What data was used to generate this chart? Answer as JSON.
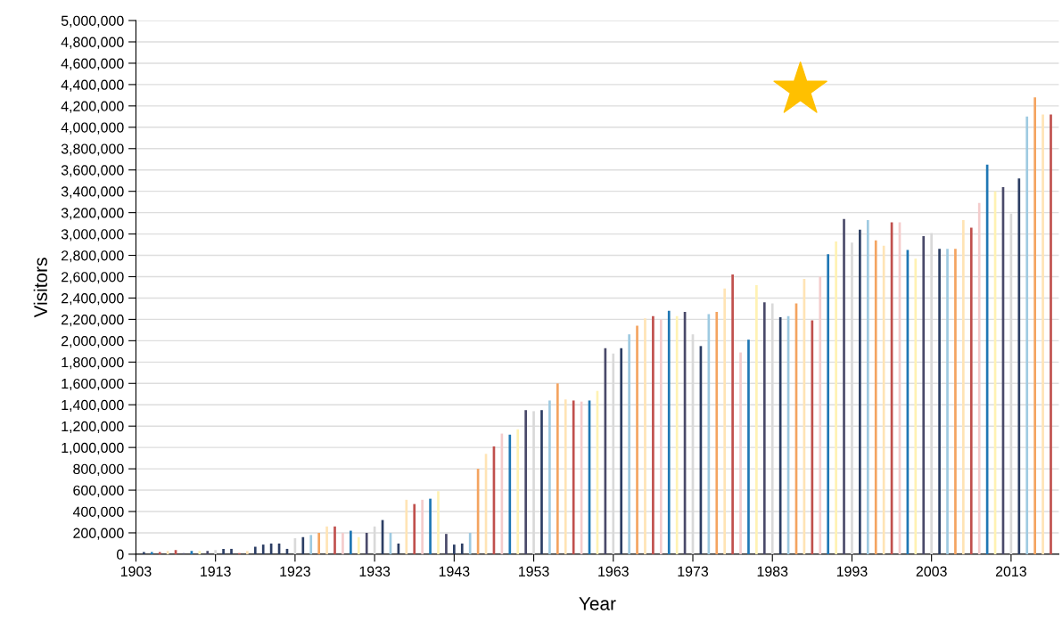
{
  "chart_data": {
    "type": "bar",
    "xlabel": "Year",
    "ylabel": "Visitors",
    "x": [
      1904,
      1905,
      1906,
      1907,
      1908,
      1909,
      1910,
      1911,
      1912,
      1913,
      1914,
      1915,
      1916,
      1917,
      1918,
      1919,
      1920,
      1921,
      1922,
      1923,
      1924,
      1925,
      1926,
      1927,
      1928,
      1929,
      1930,
      1931,
      1932,
      1933,
      1934,
      1935,
      1936,
      1937,
      1938,
      1939,
      1940,
      1941,
      1942,
      1943,
      1944,
      1945,
      1946,
      1947,
      1948,
      1949,
      1950,
      1951,
      1952,
      1953,
      1954,
      1955,
      1956,
      1957,
      1958,
      1959,
      1960,
      1961,
      1962,
      1963,
      1964,
      1965,
      1966,
      1967,
      1968,
      1969,
      1970,
      1971,
      1972,
      1973,
      1974,
      1975,
      1976,
      1977,
      1978,
      1979,
      1980,
      1981,
      1982,
      1983,
      1984,
      1985,
      1986,
      1987,
      1988,
      1989,
      1990,
      1991,
      1992,
      1993,
      1994,
      1995,
      1996,
      1997,
      1998,
      1999,
      2000,
      2001,
      2002,
      2003,
      2004,
      2005,
      2006,
      2007,
      2008,
      2009,
      2010,
      2011,
      2012,
      2013,
      2014,
      2015,
      2016,
      2017,
      2018
    ],
    "values": [
      20000,
      20000,
      20000,
      30000,
      40000,
      10000,
      30000,
      30000,
      30000,
      40000,
      50000,
      50000,
      10000,
      30000,
      70000,
      90000,
      100000,
      100000,
      50000,
      150000,
      160000,
      180000,
      200000,
      260000,
      260000,
      200000,
      220000,
      160000,
      200000,
      260000,
      320000,
      200000,
      100000,
      510000,
      470000,
      510000,
      520000,
      590000,
      190000,
      90000,
      100000,
      200000,
      800000,
      940000,
      1010000,
      1130000,
      1120000,
      1170000,
      1350000,
      1340000,
      1350000,
      1440000,
      1600000,
      1450000,
      1440000,
      1430000,
      1440000,
      1530000,
      1930000,
      1880000,
      1930000,
      2060000,
      2140000,
      2210000,
      2230000,
      2200000,
      2280000,
      2230000,
      2270000,
      2060000,
      1950000,
      2250000,
      2270000,
      2490000,
      2620000,
      1890000,
      2010000,
      2520000,
      2360000,
      2350000,
      2220000,
      2230000,
      2350000,
      2580000,
      2190000,
      2600000,
      2810000,
      2930000,
      3140000,
      2920000,
      3040000,
      3130000,
      2940000,
      2890000,
      3110000,
      3110000,
      2850000,
      2770000,
      2980000,
      3010000,
      2860000,
      2860000,
      2860000,
      3130000,
      3060000,
      3290000,
      3650000,
      3400000,
      3440000,
      3190000,
      3520000,
      4100000,
      4280000,
      4120000,
      4120000
    ],
    "colors": [
      "#2c3e64",
      "#1f77b4",
      "#c0504d",
      "#ffe4b5",
      "#c0504d",
      "#4a4a6a",
      "#1f77b4",
      "#fff2b3",
      "#4a4a6a",
      "#d9d9d9",
      "#2c3e64",
      "#2c3e64",
      "#c0504d",
      "#ffe4b5",
      "#2c3e64",
      "#2c3e64",
      "#2c3e64",
      "#2c3e64",
      "#2c3e64",
      "#d9d9d9",
      "#2c3e64",
      "#9ecae1",
      "#f4a460",
      "#ffe4b5",
      "#c0504d",
      "#f4cccc",
      "#1f77b4",
      "#fff2b3",
      "#4a4a6a",
      "#d9d9d9",
      "#2c3e64",
      "#9ecae1",
      "#2c3e64",
      "#ffe4b5",
      "#c0504d",
      "#f4cccc",
      "#1f77b4",
      "#fff2b3",
      "#4a4a6a",
      "#2c3e64",
      "#2c3e64",
      "#9ecae1",
      "#f4a460",
      "#ffe4b5",
      "#c0504d",
      "#f4cccc",
      "#1f77b4",
      "#fff2b3",
      "#4a4a6a",
      "#d9d9d9",
      "#2c3e64",
      "#9ecae1",
      "#f4a460",
      "#ffe4b5",
      "#c0504d",
      "#f4cccc",
      "#1f77b4",
      "#fff2b3",
      "#4a4a6a",
      "#d9d9d9",
      "#2c3e64",
      "#9ecae1",
      "#f4a460",
      "#ffe4b5",
      "#c0504d",
      "#f4cccc",
      "#1f77b4",
      "#fff2b3",
      "#4a4a6a",
      "#d9d9d9",
      "#2c3e64",
      "#9ecae1",
      "#f4a460",
      "#ffe4b5",
      "#c0504d",
      "#f4cccc",
      "#1f77b4",
      "#fff2b3",
      "#4a4a6a",
      "#d9d9d9",
      "#2c3e64",
      "#9ecae1",
      "#f4a460",
      "#ffe4b5",
      "#c0504d",
      "#f4cccc",
      "#1f77b4",
      "#fff2b3",
      "#4a4a6a",
      "#d9d9d9",
      "#2c3e64",
      "#9ecae1",
      "#f4a460",
      "#ffe4b5",
      "#c0504d",
      "#f4cccc",
      "#1f77b4",
      "#fff2b3",
      "#4a4a6a",
      "#d9d9d9",
      "#2c3e64",
      "#9ecae1",
      "#f4a460",
      "#ffe4b5",
      "#c0504d",
      "#f4cccc",
      "#1f77b4",
      "#fff2b3",
      "#4a4a6a",
      "#d9d9d9",
      "#2c3e64",
      "#9ecae1",
      "#f4a460",
      "#ffe4b5",
      "#c0504d"
    ],
    "xlim": [
      1903,
      2019
    ],
    "xticks": [
      1903,
      1913,
      1923,
      1933,
      1943,
      1953,
      1963,
      1973,
      1983,
      1993,
      2003,
      2013
    ],
    "ylim": [
      0,
      5000000
    ],
    "yticks": [
      0,
      {
        "value": 200000,
        "label": "200,000"
      },
      {
        "value": 400000,
        "label": "400,000"
      },
      {
        "value": 600000,
        "label": "600,000"
      },
      {
        "value": 800000,
        "label": "800,000"
      },
      {
        "value": 1000000,
        "label": "1,000,000"
      },
      {
        "value": 1200000,
        "label": "1,200,000"
      },
      {
        "value": 1400000,
        "label": "1,400,000"
      },
      {
        "value": 1600000,
        "label": "1,600,000"
      },
      {
        "value": 1800000,
        "label": "1,800,000"
      },
      {
        "value": 2000000,
        "label": "2,000,000"
      },
      {
        "value": 2200000,
        "label": "2,200,000"
      },
      {
        "value": 2400000,
        "label": "2,400,000"
      },
      {
        "value": 2600000,
        "label": "2,600,000"
      },
      {
        "value": 2800000,
        "label": "2,800,000"
      },
      {
        "value": 3000000,
        "label": "3,000,000"
      },
      {
        "value": 3200000,
        "label": "3,200,000"
      },
      {
        "value": 3400000,
        "label": "3,400,000"
      },
      {
        "value": 3600000,
        "label": "3,600,000"
      },
      {
        "value": 3800000,
        "label": "3,800,000"
      },
      {
        "value": 4000000,
        "label": "4,000,000"
      },
      {
        "value": 4200000,
        "label": "4,200,000"
      },
      {
        "value": 4400000,
        "label": "4,400,000"
      },
      {
        "value": 4600000,
        "label": "4,600,000"
      },
      {
        "value": 4800000,
        "label": "4,800,000"
      },
      {
        "value": 5000000,
        "label": "5,000,000"
      }
    ],
    "grid": "y"
  }
}
